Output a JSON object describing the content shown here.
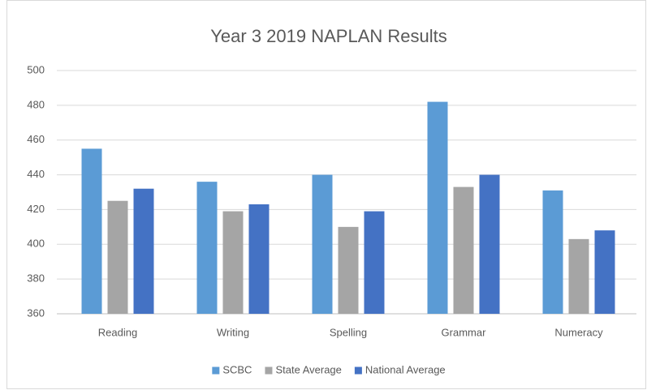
{
  "chart_data": {
    "type": "bar",
    "title": "Year 3 2019 NAPLAN Results",
    "categories": [
      "Reading",
      "Writing",
      "Spelling",
      "Grammar",
      "Numeracy"
    ],
    "series": [
      {
        "name": "SCBC",
        "color": "#5b9bd5",
        "values": [
          455,
          436,
          440,
          482,
          431
        ]
      },
      {
        "name": "State Average",
        "color": "#a5a5a5",
        "values": [
          425,
          419,
          410,
          433,
          403
        ]
      },
      {
        "name": "National Average",
        "color": "#4472c4",
        "values": [
          432,
          423,
          419,
          440,
          408
        ]
      }
    ],
    "ylim": [
      360,
      500
    ],
    "yticks": [
      360,
      380,
      400,
      420,
      440,
      460,
      480,
      500
    ],
    "grid": true,
    "legend": "bottom"
  }
}
